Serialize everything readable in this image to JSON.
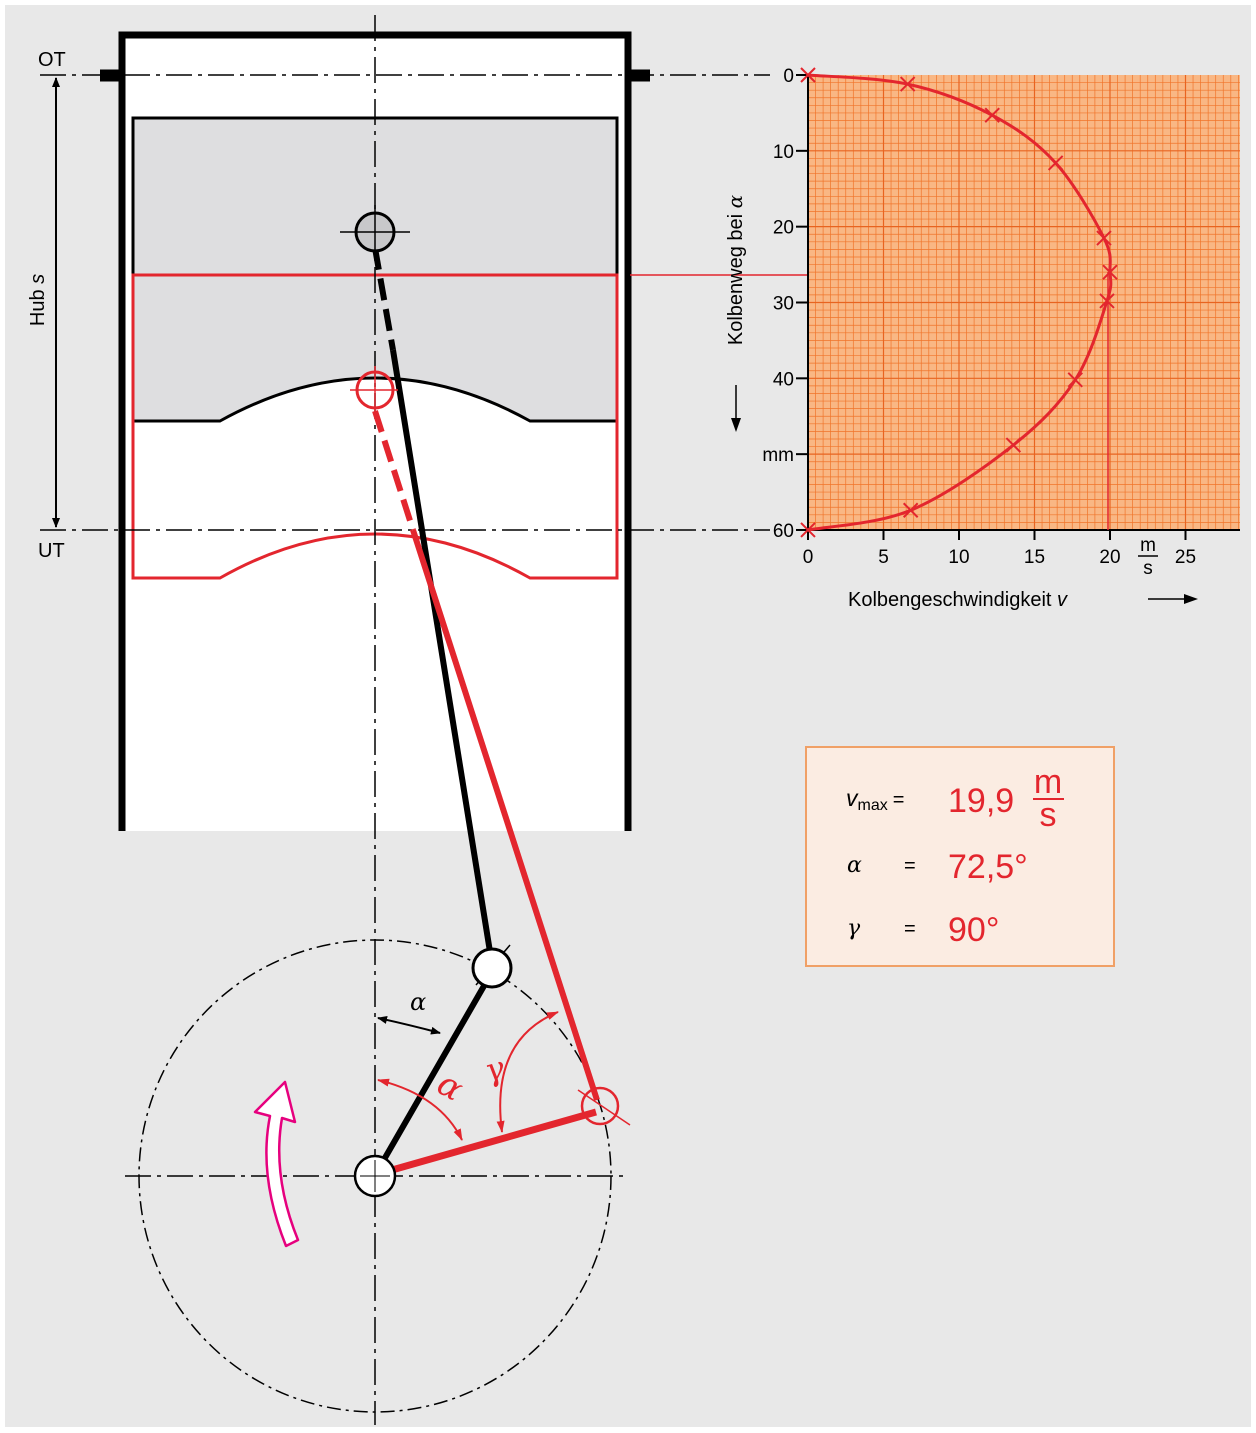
{
  "labels": {
    "ot": "OT",
    "ut": "UT",
    "hub": "Hub",
    "hub_var": "s",
    "alpha": "α",
    "gamma": "γ"
  },
  "chart_data": {
    "type": "line",
    "orientation": "y-inverted (y axis points down)",
    "ylabel": "Kolbenweg bei",
    "ylabel_var": "α",
    "yunit": "mm",
    "xlabel": "Kolbengeschwindigkeit",
    "xlabel_var": "v",
    "xunit_num": "m",
    "xunit_den": "s",
    "xlim": [
      0,
      28
    ],
    "ylim": [
      0,
      60
    ],
    "x_ticks": [
      "0",
      "5",
      "10",
      "15",
      "20",
      "25"
    ],
    "y_ticks": [
      "0",
      "10",
      "20",
      "30",
      "40",
      "mm",
      "60"
    ],
    "grid": true,
    "series": [
      {
        "points": [
          [
            0,
            0
          ],
          [
            6.6,
            1.2
          ],
          [
            12.2,
            5.3
          ],
          [
            16.4,
            11.6
          ],
          [
            19.6,
            21.5
          ],
          [
            20,
            26
          ],
          [
            19.8,
            29.8
          ],
          [
            17.7,
            40.2
          ],
          [
            13.6,
            48.8
          ],
          [
            6.8,
            57.4
          ],
          [
            0,
            60
          ]
        ]
      }
    ],
    "marked_points": [
      [
        0,
        0
      ],
      [
        6.6,
        1.2
      ],
      [
        12.2,
        5.3
      ],
      [
        16.4,
        11.6
      ],
      [
        19.6,
        21.5
      ],
      [
        20,
        26
      ],
      [
        19.8,
        29.8
      ],
      [
        17.7,
        40.2
      ],
      [
        13.6,
        48.8
      ],
      [
        6.8,
        57.4
      ],
      [
        0,
        60
      ]
    ],
    "max_marker": {
      "v": 20,
      "s": 26
    }
  },
  "result_box": {
    "vmax_label": "v",
    "vmax_sub": "max",
    "eq": "=",
    "vmax_value": "19,9",
    "vmax_unit_num": "m",
    "vmax_unit_den": "s",
    "alpha_label": "α",
    "alpha_value": "72,5°",
    "gamma_label": "γ",
    "gamma_value": "90°"
  },
  "colors": {
    "background": "#e8e8e8",
    "red": "#e3262e",
    "grid_bg": "#f9b784",
    "grid_line": "#f0742a",
    "box_bg": "#fbece2",
    "box_border": "#f0a066",
    "arrow": "#e6007e"
  }
}
